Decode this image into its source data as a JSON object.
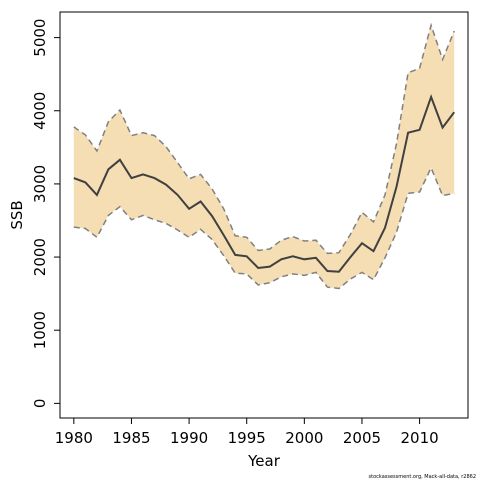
{
  "chart_data": {
    "type": "line",
    "title": "",
    "xlabel": "Year",
    "ylabel": "SSB",
    "xlim": [
      1978.8,
      2014.2
    ],
    "ylim": [
      -200,
      5350
    ],
    "x_ticks": [
      1980,
      1985,
      1990,
      1995,
      2000,
      2005,
      2010
    ],
    "y_ticks": [
      0,
      1000,
      2000,
      3000,
      4000,
      5000
    ],
    "grid": false,
    "legend": "none",
    "colors": {
      "band": "#f5deb3",
      "line": "#404040",
      "bound": "#808080"
    },
    "x": [
      1980,
      1981,
      1982,
      1983,
      1984,
      1985,
      1986,
      1987,
      1988,
      1989,
      1990,
      1991,
      1992,
      1993,
      1994,
      1995,
      1996,
      1997,
      1998,
      1999,
      2000,
      2001,
      2002,
      2003,
      2004,
      2005,
      2006,
      2007,
      2008,
      2009,
      2010,
      2011,
      2012,
      2013
    ],
    "series": [
      {
        "role": "estimate",
        "values": [
          3080,
          3020,
          2850,
          3200,
          3330,
          3080,
          3130,
          3080,
          2990,
          2850,
          2660,
          2760,
          2560,
          2300,
          2030,
          2010,
          1850,
          1870,
          1970,
          2010,
          1970,
          1990,
          1810,
          1800,
          2000,
          2190,
          2080,
          2400,
          2960,
          3700,
          3740,
          4190,
          3770,
          3980
        ]
      },
      {
        "role": "upper",
        "values": [
          3780,
          3670,
          3450,
          3850,
          4010,
          3660,
          3700,
          3660,
          3510,
          3290,
          3070,
          3130,
          2930,
          2660,
          2290,
          2270,
          2090,
          2110,
          2230,
          2280,
          2220,
          2230,
          2050,
          2060,
          2310,
          2610,
          2480,
          2850,
          3550,
          4520,
          4580,
          5170,
          4700,
          5090
        ]
      },
      {
        "role": "lower",
        "values": [
          2410,
          2390,
          2270,
          2570,
          2690,
          2510,
          2570,
          2510,
          2460,
          2370,
          2270,
          2380,
          2240,
          2020,
          1780,
          1770,
          1620,
          1650,
          1730,
          1770,
          1750,
          1790,
          1590,
          1570,
          1700,
          1790,
          1690,
          1990,
          2340,
          2870,
          2890,
          3220,
          2840,
          2870
        ]
      }
    ],
    "footnote": "stockassessment.org, Mack-all-data, r2862"
  }
}
